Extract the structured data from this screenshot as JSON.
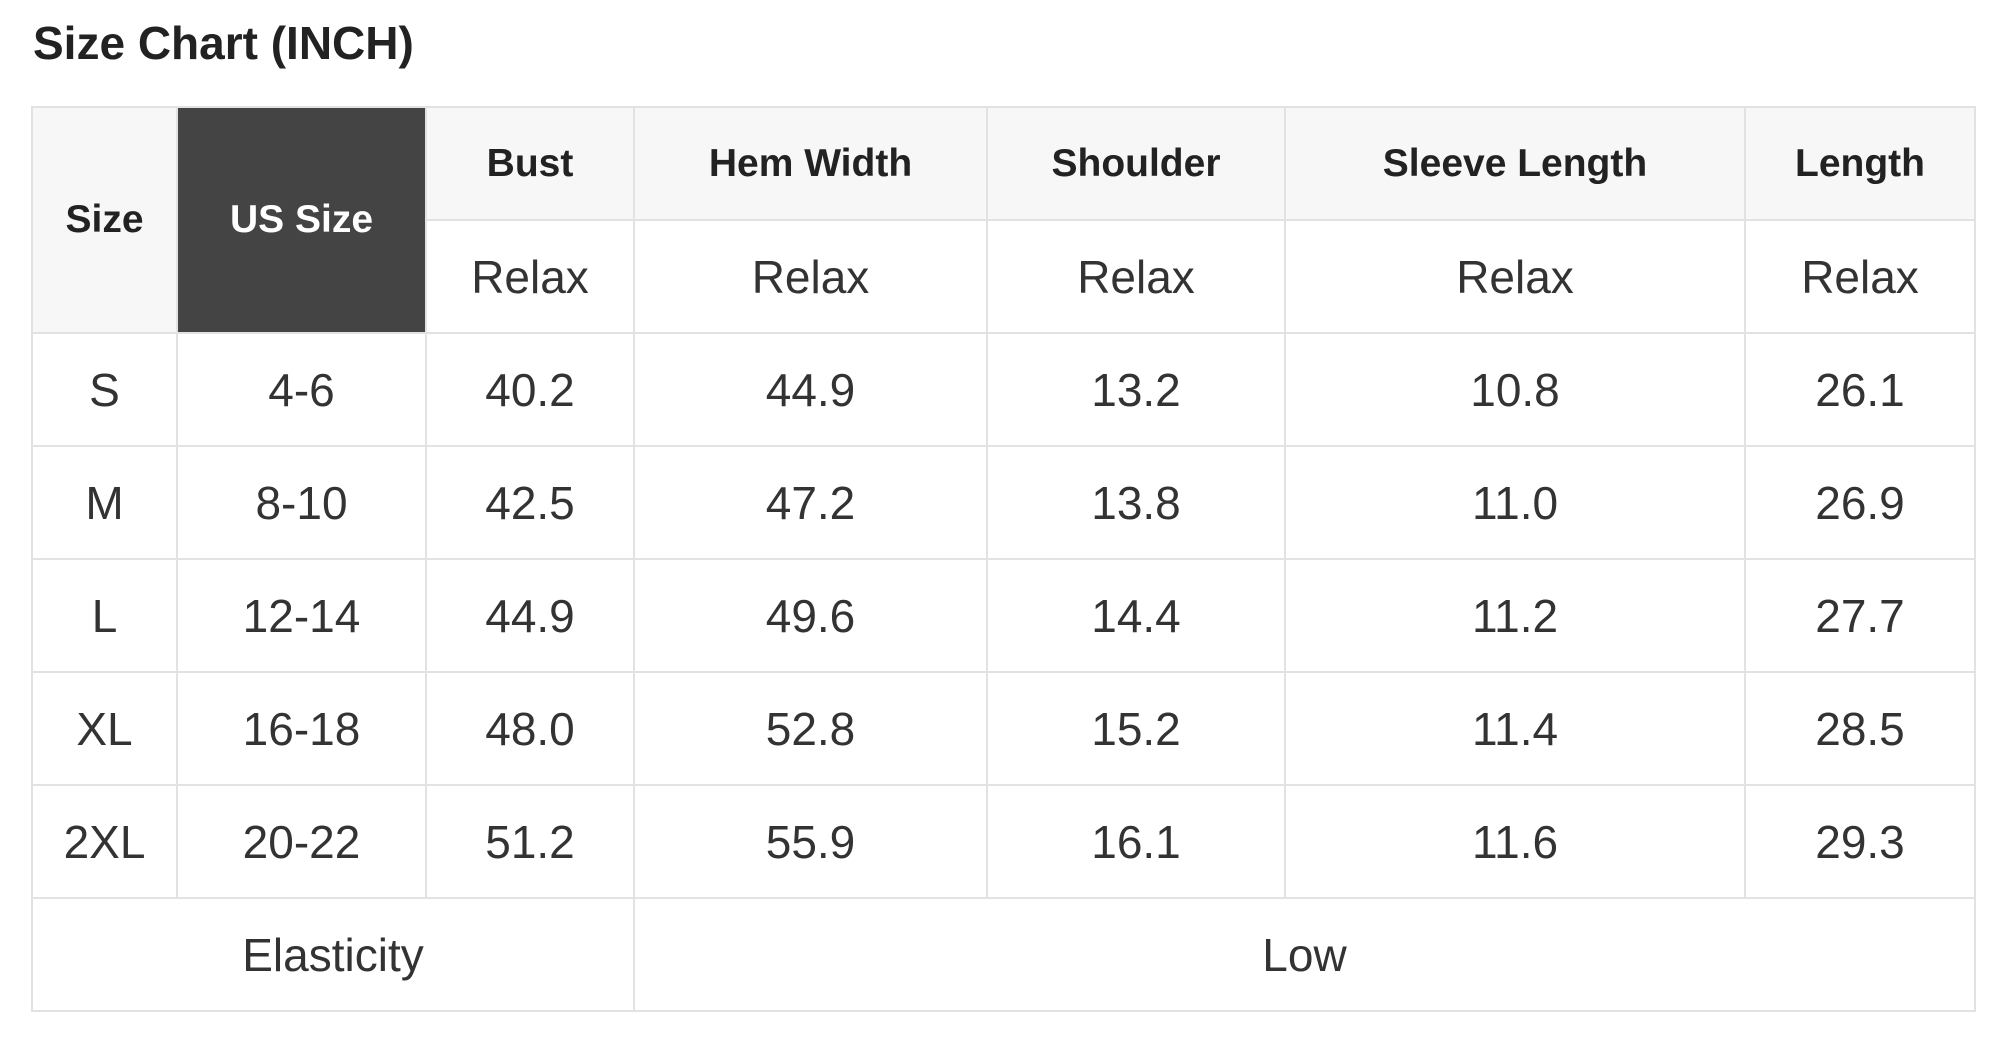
{
  "title": "Size Chart (INCH)",
  "table": {
    "header": [
      "Size",
      "US Size",
      "Bust",
      "Hem Width",
      "Shoulder",
      "Sleeve Length",
      "Length"
    ],
    "subheader": [
      "Relax",
      "Relax",
      "Relax",
      "Relax",
      "Relax"
    ],
    "rows": [
      [
        "S",
        "4-6",
        "40.2",
        "44.9",
        "13.2",
        "10.8",
        "26.1"
      ],
      [
        "M",
        "8-10",
        "42.5",
        "47.2",
        "13.8",
        "11.0",
        "26.9"
      ],
      [
        "L",
        "12-14",
        "44.9",
        "49.6",
        "14.4",
        "11.2",
        "27.7"
      ],
      [
        "XL",
        "16-18",
        "48.0",
        "52.8",
        "15.2",
        "11.4",
        "28.5"
      ],
      [
        "2XL",
        "20-22",
        "51.2",
        "55.9",
        "16.1",
        "11.6",
        "29.3"
      ]
    ],
    "footer": [
      "Elasticity",
      "Low"
    ]
  }
}
